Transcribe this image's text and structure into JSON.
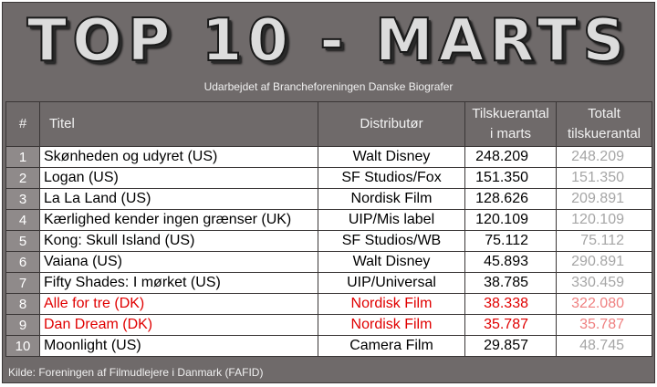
{
  "header": {
    "title": "TOP 10 - MARTS",
    "subtitle": "Udarbejdet af Brancheforeningen Danske Biografer"
  },
  "columns": {
    "rank": "#",
    "title": "Titel",
    "distributor": "Distributør",
    "month_line1": "Tilskuerantal",
    "month_line2": "i marts",
    "total_line1": "Totalt",
    "total_line2": "tilskuerantal"
  },
  "rows": [
    {
      "rank": "1",
      "title": "Skønheden og udyret (US)",
      "distributor": "Walt Disney",
      "month": "248.209",
      "total": "248.209",
      "danish": false
    },
    {
      "rank": "2",
      "title": "Logan (US)",
      "distributor": "SF Studios/Fox",
      "month": "151.350",
      "total": "151.350",
      "danish": false
    },
    {
      "rank": "3",
      "title": "La La Land (US)",
      "distributor": "Nordisk Film",
      "month": "128.626",
      "total": "209.891",
      "danish": false
    },
    {
      "rank": "4",
      "title": "Kærlighed kender ingen grænser (UK)",
      "distributor": "UIP/Mis label",
      "month": "120.109",
      "total": "120.109",
      "danish": false
    },
    {
      "rank": "5",
      "title": "Kong: Skull Island (US)",
      "distributor": "SF Studios/WB",
      "month": "75.112",
      "total": "75.112",
      "danish": false
    },
    {
      "rank": "6",
      "title": "Vaiana (US)",
      "distributor": "Walt Disney",
      "month": "45.893",
      "total": "290.891",
      "danish": false
    },
    {
      "rank": "7",
      "title": "Fifty Shades: I mørket (US)",
      "distributor": "UIP/Universal",
      "month": "38.785",
      "total": "330.459",
      "danish": false
    },
    {
      "rank": "8",
      "title": "Alle for tre (DK)",
      "distributor": "Nordisk Film",
      "month": "38.338",
      "total": "322.080",
      "danish": true
    },
    {
      "rank": "9",
      "title": "Dan Dream (DK)",
      "distributor": "Nordisk Film",
      "month": "35.787",
      "total": "35.787",
      "danish": true
    },
    {
      "rank": "10",
      "title": "Moonlight (US)",
      "distributor": "Camera Film",
      "month": "29.857",
      "total": "48.745",
      "danish": false
    }
  ],
  "footer": {
    "source": "Kilde: Foreningen af Filmudlejere i Danmark (FAFID)"
  },
  "colors": {
    "frame": "#6f6a6a",
    "rank_cell": "#8f8a8a",
    "danish_text": "#e00000",
    "total_text": "#a6a6a6"
  }
}
